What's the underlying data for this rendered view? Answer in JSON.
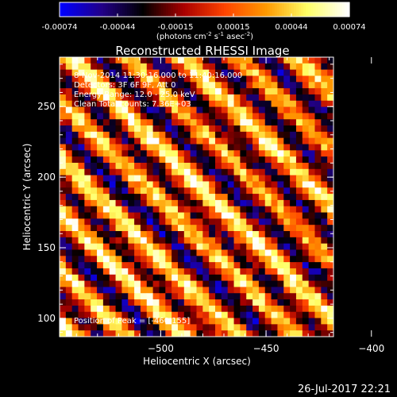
{
  "chart_data": {
    "type": "heatmap",
    "title": "Reconstructed RHESSI Image",
    "xlabel": "Heliocentric X (arcsec)",
    "ylabel": "Heliocentric Y (arcsec)",
    "xlim": [
      -548,
      -418
    ],
    "ylim": [
      87,
      285
    ],
    "xticks": [
      -500,
      -450,
      -400
    ],
    "yticks": [
      100,
      150,
      200,
      250
    ],
    "colorbar": {
      "range": [
        -0.00074,
        0.00074
      ],
      "ticks": [
        "-0.00074",
        "-0.00044",
        "-0.00015",
        "0.00015",
        "0.00044",
        "0.00074"
      ],
      "unit_label": "(photons cm",
      "unit_exp1": "-2",
      "unit_mid": " s",
      "unit_exp2": "-1",
      "unit_end": " asec",
      "unit_exp3": "-2",
      "unit_close": ")",
      "colors": [
        "#0000ff",
        "#220088",
        "#000000",
        "#aa0000",
        "#ff4400",
        "#ff9900",
        "#ffff66",
        "#ffffff"
      ]
    },
    "annotations": {
      "time_range": "8-Nov-2014 11:30:16.000 to 11:40:16.000",
      "detectors": "Detectors: 3F 6F 9F, Att 0",
      "energy": "Energy Range: 12.0 - 25.0 keV",
      "clean": "Clean    Total counts: 7.36E+03",
      "peak": "Position of Peak = [-460,155]"
    },
    "pattern": "diagonal stripes (lower-left to upper-right), pixelated"
  },
  "timestamp": "26-Jul-2017 22:21"
}
